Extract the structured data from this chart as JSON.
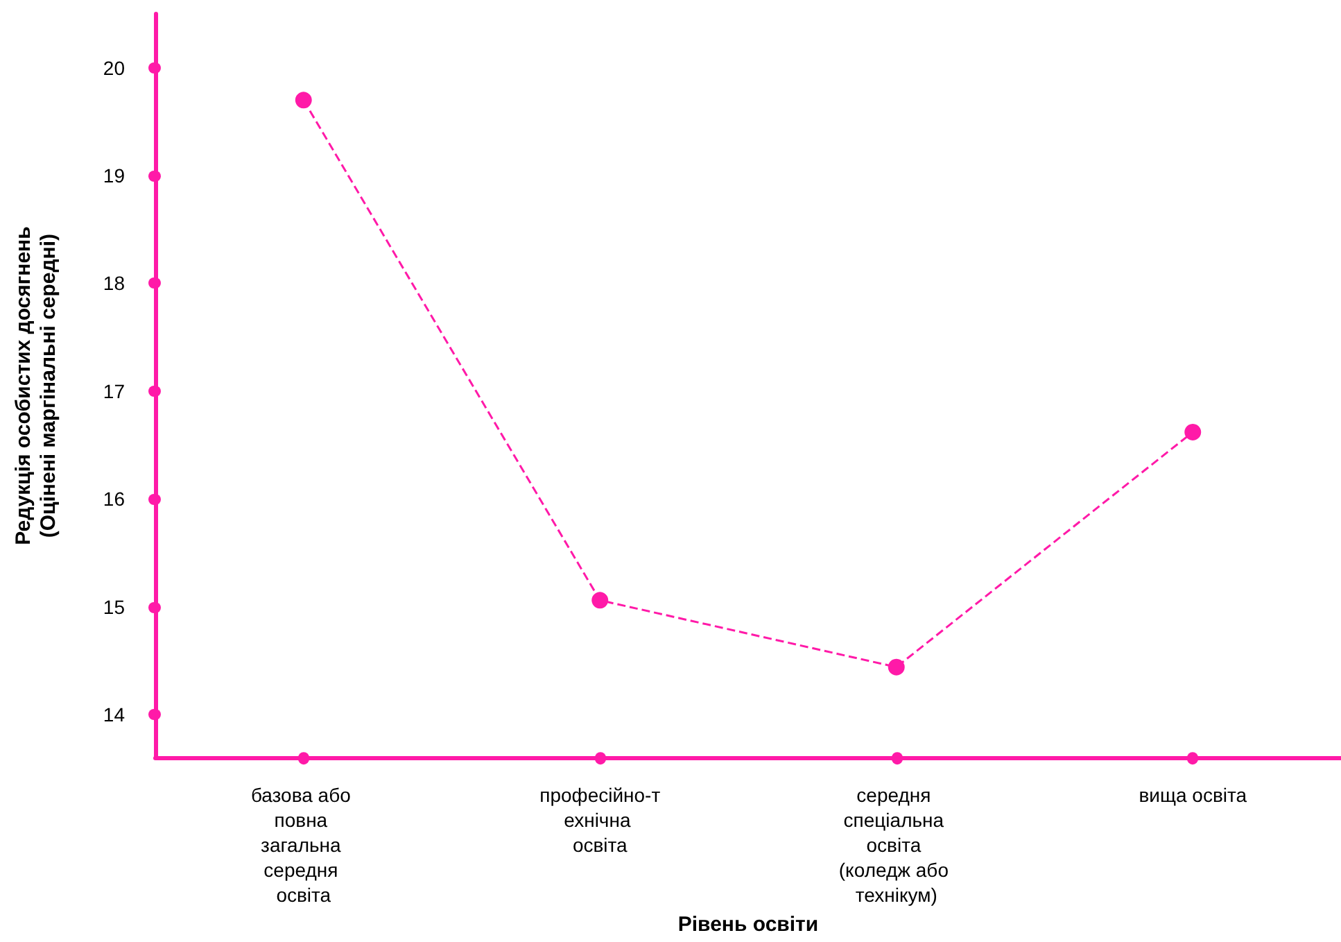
{
  "chart_data": {
    "type": "line",
    "xlabel": "Рівень освіти",
    "ylabel": "Редукція особистих досягнень\n(Оцінені маргінальні середні)",
    "categories": [
      "базова або повна загальна середня освіта",
      "професійно-технічна освіта",
      "середня спеціальна освіта (коледж або технікум)",
      "вища освіта"
    ],
    "series": [
      {
        "color": "#ff1aa8",
        "values": [
          19.7,
          15.06,
          14.44,
          16.62
        ]
      }
    ],
    "ylim": [
      13.6,
      20.5
    ],
    "yticks": [
      14,
      15,
      16,
      17,
      18,
      19,
      20
    ],
    "grid": false,
    "marker": "circle",
    "line_style": "dashed"
  }
}
